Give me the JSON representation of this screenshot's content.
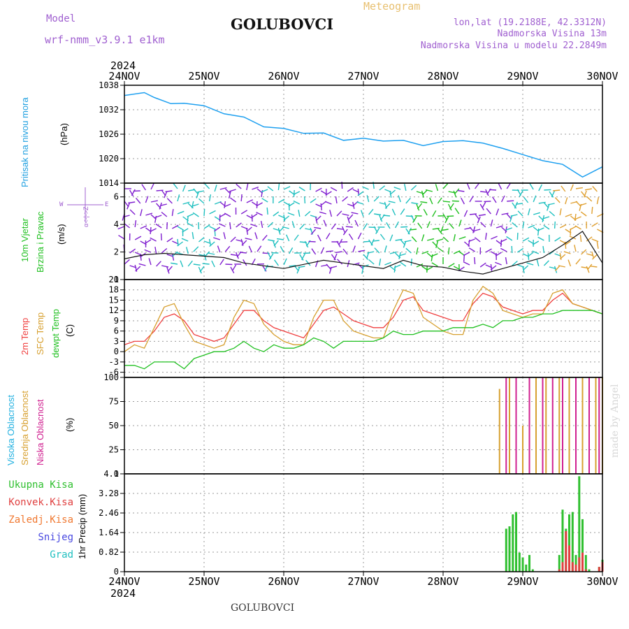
{
  "header": {
    "model_label": "Model",
    "model_name": "wrf-nmm_v3.9.1 e1km",
    "title": "GOLUBOVCI",
    "meteogram": "Meteogram",
    "lonlat": "lon,lat (19.2188E, 42.3312N)",
    "elev": "Nadmorska Visina 13m",
    "elev_model": "Nadmorska Visina u modelu 22.2849m",
    "footer_title": "GOLUBOVCI",
    "credit": "made by Angel"
  },
  "colors": {
    "pressure": "#1ea0f0",
    "t2m": "#f04040",
    "tsfc": "#d7a030",
    "dewpt": "#20c020",
    "high": "#20b0e0",
    "mid": "#d7a030",
    "low": "#d02090",
    "rain_total": "#30c030",
    "conv": "#e04040",
    "frozen": "#f07830",
    "snow": "#4848e0",
    "hail": "#20c0c0",
    "wind_purple": "#8020d0",
    "wind_cyan": "#20c0c0"
  },
  "time_axis": {
    "year": "2024",
    "labels": [
      "24NOV",
      "25NOV",
      "26NOV",
      "27NOV",
      "28NOV",
      "29NOV",
      "30NOV"
    ]
  },
  "panels": {
    "pressure": {
      "ylabel": "Pritisak na nivou mora",
      "unit": "(hPa)",
      "ticks": [
        "1014",
        "1020",
        "1026",
        "1032",
        "1038"
      ]
    },
    "wind": {
      "ylabel1": "10m Vjetar",
      "ylabel2": "Brzina i Pravac",
      "unit": "(m/s)",
      "ticks": [
        "0",
        "2",
        "4",
        "6"
      ],
      "compass_w": "W",
      "compass_e": "E",
      "compass_axis": "α<-|->Z"
    },
    "temp": {
      "ylabel1": "2m Temp",
      "ylabel2": "SFC Temp",
      "ylabel3": "dewpt Temp",
      "unit": "(C)",
      "ticks": [
        "-6",
        "-3",
        "0",
        "3",
        "6",
        "9",
        "12",
        "15",
        "18",
        "21"
      ]
    },
    "cloud": {
      "ylabel1": "Visoka Oblacnost",
      "ylabel2": "Srednja Oblacnost",
      "ylabel3": "Niska Oblacnost",
      "unit": "(%)",
      "ticks": [
        "0",
        "25",
        "50",
        "75",
        "100"
      ]
    },
    "precip": {
      "leg1": "Ukupna Kisa",
      "leg2": "Konvek.Kisa",
      "leg3": "Zaledj.Kisa",
      "leg4": "Snijeg",
      "leg5": "Grad",
      "unit": "1hr Precip (mm)",
      "ticks": [
        "0",
        "0.82",
        "1.64",
        "2.46",
        "3.28",
        "4.1"
      ]
    }
  },
  "chart_data": [
    {
      "type": "line",
      "title": "",
      "ylabel": "Pritisak na nivou mora (hPa)",
      "x_unit": "hours since 24NOV 00 UTC",
      "ylim": [
        1014,
        1038
      ],
      "series": [
        {
          "name": "Pritisak na nivou mora",
          "x": [
            0,
            6,
            9,
            14,
            18,
            24,
            30,
            36,
            42,
            48,
            54,
            60,
            66,
            72,
            78,
            84,
            90,
            96,
            102,
            108,
            114,
            120,
            126,
            132,
            138,
            144
          ],
          "y": [
            1035.5,
            1036.2,
            1035.0,
            1033.5,
            1033.6,
            1033.0,
            1031.0,
            1030.2,
            1027.8,
            1027.4,
            1026.2,
            1026.3,
            1024.5,
            1025.0,
            1024.3,
            1024.5,
            1023.2,
            1024.2,
            1024.4,
            1023.8,
            1022.5,
            1021.0,
            1019.5,
            1018.6,
            1015.5,
            1018.0
          ]
        }
      ],
      "grid": true
    },
    {
      "type": "line",
      "title": "",
      "ylabel": "10m Vjetar Brzina i Pravac (m/s)",
      "x_unit": "hours since 24NOV 00 UTC",
      "ylim": [
        0,
        7
      ],
      "series": [
        {
          "name": "10m Vjetar",
          "x": [
            0,
            6,
            12,
            18,
            24,
            30,
            36,
            42,
            48,
            54,
            60,
            66,
            72,
            78,
            84,
            90,
            96,
            102,
            108,
            114,
            120,
            126,
            132,
            138,
            144
          ],
          "y": [
            1.5,
            1.8,
            1.9,
            1.8,
            1.7,
            1.6,
            1.2,
            1.0,
            0.8,
            1.1,
            1.4,
            1.2,
            1.0,
            0.8,
            1.4,
            1.0,
            0.9,
            0.6,
            0.4,
            0.8,
            1.2,
            1.6,
            2.5,
            3.5,
            1.2
          ]
        }
      ],
      "grid": true
    },
    {
      "type": "line",
      "title": "",
      "ylabel": "Temp (C)",
      "x_unit": "hours since 24NOV 00 UTC",
      "ylim": [
        -7.5,
        21
      ],
      "series": [
        {
          "name": "2m Temp",
          "x": [
            0,
            3,
            6,
            9,
            12,
            15,
            18,
            21,
            24,
            27,
            30,
            33,
            36,
            39,
            42,
            45,
            48,
            51,
            54,
            57,
            60,
            63,
            66,
            69,
            72,
            75,
            78,
            81,
            84,
            87,
            90,
            93,
            96,
            99,
            102,
            105,
            108,
            111,
            114,
            117,
            120,
            123,
            126,
            129,
            132,
            135,
            138,
            141,
            144
          ],
          "y": [
            2,
            3,
            3,
            6,
            10,
            11,
            9,
            5,
            4,
            3,
            4,
            8,
            12,
            12,
            9,
            7,
            6,
            5,
            4,
            8,
            12,
            13,
            11,
            9,
            8,
            7,
            7,
            10,
            15,
            16,
            12,
            11,
            10,
            9,
            9,
            14,
            17,
            16,
            13,
            12,
            11,
            12,
            12,
            15,
            17,
            14,
            13,
            12,
            11
          ]
        },
        {
          "name": "SFC Temp",
          "x": [
            0,
            3,
            6,
            9,
            12,
            15,
            18,
            21,
            24,
            27,
            30,
            33,
            36,
            39,
            42,
            45,
            48,
            51,
            54,
            57,
            60,
            63,
            66,
            69,
            72,
            75,
            78,
            81,
            84,
            87,
            90,
            93,
            96,
            99,
            102,
            105,
            108,
            111,
            114,
            117,
            120,
            123,
            126,
            129,
            132,
            135,
            138,
            141,
            144
          ],
          "y": [
            0,
            2,
            1,
            7,
            13,
            14,
            8,
            3,
            2,
            1,
            2,
            10,
            15,
            14,
            8,
            5,
            3,
            2,
            2,
            10,
            15,
            15,
            9,
            6,
            5,
            4,
            4,
            12,
            18,
            17,
            10,
            8,
            6,
            5,
            5,
            15,
            19,
            17,
            12,
            11,
            10,
            11,
            11,
            17,
            18,
            14,
            13,
            12,
            11
          ]
        },
        {
          "name": "dewpt Temp",
          "x": [
            0,
            3,
            6,
            9,
            12,
            15,
            18,
            21,
            24,
            27,
            30,
            33,
            36,
            39,
            42,
            45,
            48,
            51,
            54,
            57,
            60,
            63,
            66,
            69,
            72,
            75,
            78,
            81,
            84,
            87,
            90,
            93,
            96,
            99,
            102,
            105,
            108,
            111,
            114,
            117,
            120,
            123,
            126,
            129,
            132,
            135,
            138,
            141,
            144
          ],
          "y": [
            -4,
            -4,
            -5,
            -3,
            -3,
            -3,
            -5,
            -2,
            -1,
            0,
            0,
            1,
            3,
            1,
            0,
            2,
            1,
            1,
            2,
            4,
            3,
            1,
            3,
            3,
            3,
            3,
            4,
            6,
            5,
            5,
            6,
            6,
            6,
            7,
            7,
            7,
            8,
            7,
            9,
            9,
            10,
            10,
            11,
            11,
            12,
            12,
            12,
            12,
            11
          ]
        }
      ],
      "grid": true
    },
    {
      "type": "bar",
      "title": "",
      "ylabel": "Oblacnost (%)",
      "x_unit": "hours since 24NOV 00 UTC",
      "ylim": [
        0,
        100
      ],
      "series": [
        {
          "name": "Visoka Oblacnost",
          "x": [],
          "y": []
        },
        {
          "name": "Srednja Oblacnost",
          "x": [
            113,
            116,
            120,
            124,
            127,
            131,
            134,
            138,
            142,
            144
          ],
          "y": [
            88,
            100,
            50,
            100,
            100,
            100,
            100,
            100,
            100,
            100
          ]
        },
        {
          "name": "Niska Oblacnost",
          "x": [
            115,
            118,
            122,
            126,
            129,
            132,
            136,
            140,
            143
          ],
          "y": [
            100,
            100,
            100,
            100,
            100,
            100,
            100,
            100,
            100
          ]
        }
      ],
      "grid": true
    },
    {
      "type": "bar",
      "title": "",
      "ylabel": "1hr Precip (mm)",
      "x_unit": "hours since 24NOV 00 UTC",
      "ylim": [
        0,
        4.1
      ],
      "series": [
        {
          "name": "Ukupna Kisa",
          "x": [
            115,
            116,
            117,
            118,
            119,
            120,
            121,
            122,
            123,
            131,
            132,
            133,
            134,
            135,
            136,
            137,
            138,
            139,
            140,
            143,
            144
          ],
          "y": [
            1.8,
            1.9,
            2.4,
            2.5,
            0.8,
            0.6,
            0.3,
            0.7,
            0.1,
            0.7,
            2.6,
            1.8,
            2.4,
            2.5,
            0.7,
            4.0,
            2.2,
            0.7,
            0.1,
            0.2,
            0.5
          ]
        },
        {
          "name": "Konvek.Kisa",
          "x": [
            131,
            132,
            133,
            134,
            135,
            136,
            137,
            138,
            139,
            143,
            144
          ],
          "y": [
            0.1,
            0.4,
            1.7,
            1.1,
            0.4,
            0.3,
            0.6,
            0.8,
            0.1,
            0.2,
            0.4
          ]
        },
        {
          "name": "Zaledj.Kisa",
          "x": [],
          "y": []
        },
        {
          "name": "Snijeg",
          "x": [],
          "y": []
        },
        {
          "name": "Grad",
          "x": [],
          "y": []
        }
      ],
      "grid": true
    }
  ]
}
